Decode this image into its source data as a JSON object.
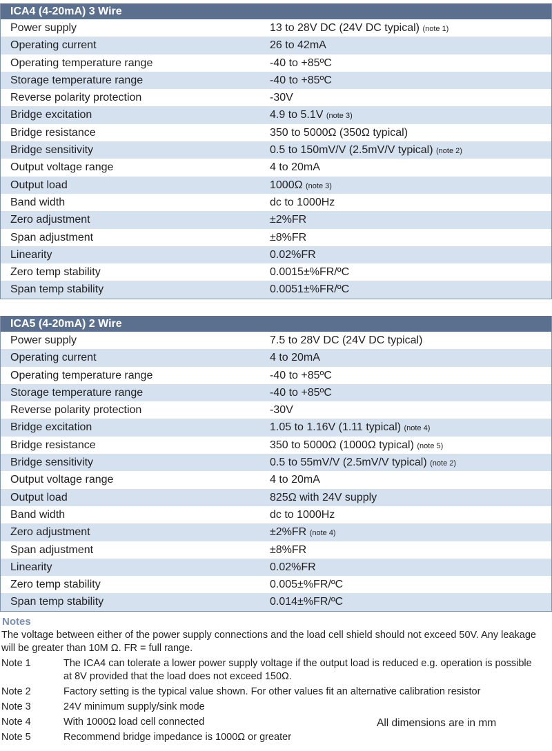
{
  "tables": [
    {
      "title": "ICA4 (4-20mA) 3 Wire",
      "rows": [
        {
          "label": "Power supply",
          "value": "13 to 28V DC (24V DC typical)",
          "note": "(note 1)"
        },
        {
          "label": "Operating current",
          "value": "26 to 42mA"
        },
        {
          "label": "Operating temperature range",
          "value": "-40 to +85ºC"
        },
        {
          "label": "Storage temperature range",
          "value": "-40 to +85ºC"
        },
        {
          "label": "Reverse polarity protection",
          "value": "-30V"
        },
        {
          "label": "Bridge excitation",
          "value": "4.9 to 5.1V",
          "note": "(note 3)"
        },
        {
          "label": "Bridge resistance",
          "value": "350 to 5000Ω (350Ω typical)"
        },
        {
          "label": "Bridge sensitivity",
          "value": "0.5 to 150mV/V (2.5mV/V typical)",
          "note": "(note 2)"
        },
        {
          "label": "Output voltage range",
          "value": "4 to 20mA"
        },
        {
          "label": "Output load",
          "value": "1000Ω",
          "note": "(note 3)"
        },
        {
          "label": "Band width",
          "value": "dc to 1000Hz"
        },
        {
          "label": "Zero adjustment",
          "value": "±2%FR"
        },
        {
          "label": "Span adjustment",
          "value": "±8%FR"
        },
        {
          "label": "Linearity",
          "value": "0.02%FR"
        },
        {
          "label": "Zero temp stability",
          "value": "0.0015±%FR/ºC"
        },
        {
          "label": "Span temp stability",
          "value": "0.0051±%FR/ºC"
        }
      ]
    },
    {
      "title": "ICA5 (4-20mA) 2 Wire",
      "rows": [
        {
          "label": "Power supply",
          "value": "7.5 to 28V DC (24V DC typical)"
        },
        {
          "label": "Operating current",
          "value": "4 to 20mA"
        },
        {
          "label": "Operating temperature range",
          "value": "-40 to +85ºC"
        },
        {
          "label": "Storage temperature range",
          "value": "-40 to +85ºC"
        },
        {
          "label": "Reverse polarity protection",
          "value": "-30V"
        },
        {
          "label": "Bridge excitation",
          "value": "1.05 to 1.16V (1.11 typical)",
          "note": "(note 4)"
        },
        {
          "label": "Bridge resistance",
          "value": "350 to 5000Ω (1000Ω typical)",
          "note": "(note 5)"
        },
        {
          "label": "Bridge sensitivity",
          "value": "0.5 to 55mV/V (2.5mV/V typical)",
          "note": "(note 2)"
        },
        {
          "label": "Output voltage range",
          "value": "4 to 20mA"
        },
        {
          "label": "Output load",
          "value": "825Ω with 24V supply"
        },
        {
          "label": "Band width",
          "value": "dc to 1000Hz"
        },
        {
          "label": "Zero adjustment",
          "value": "±2%FR",
          "note": "(note 4)"
        },
        {
          "label": "Span adjustment",
          "value": "±8%FR"
        },
        {
          "label": "Linearity",
          "value": "0.02%FR"
        },
        {
          "label": "Zero temp stability",
          "value": "0.005±%FR/ºC"
        },
        {
          "label": "Span temp stability",
          "value": "0.014±%FR/ºC"
        }
      ]
    }
  ],
  "notes": {
    "title": "Notes",
    "intro": "The voltage between either of the power supply connections and the load cell shield should not exceed 50V. Any leakage will be greater than 10M Ω. FR = full range.",
    "items": [
      {
        "label": "Note 1",
        "text": "The ICA4 can tolerate a lower power supply voltage if the output load is reduced e.g. operation is possible at 8V provided that the load does not exceed 150Ω."
      },
      {
        "label": "Note 2",
        "text": "Factory setting is the typical value shown. For other values fit an alternative calibration resistor"
      },
      {
        "label": "Note 3",
        "text": "24V minimum supply/sink mode"
      },
      {
        "label": "Note 4",
        "text": "With 1000Ω load cell connected"
      },
      {
        "label": "Note 5",
        "text": "Recommend bridge impedance is 1000Ω or greater"
      }
    ],
    "dimensions": "All dimensions are in mm"
  }
}
